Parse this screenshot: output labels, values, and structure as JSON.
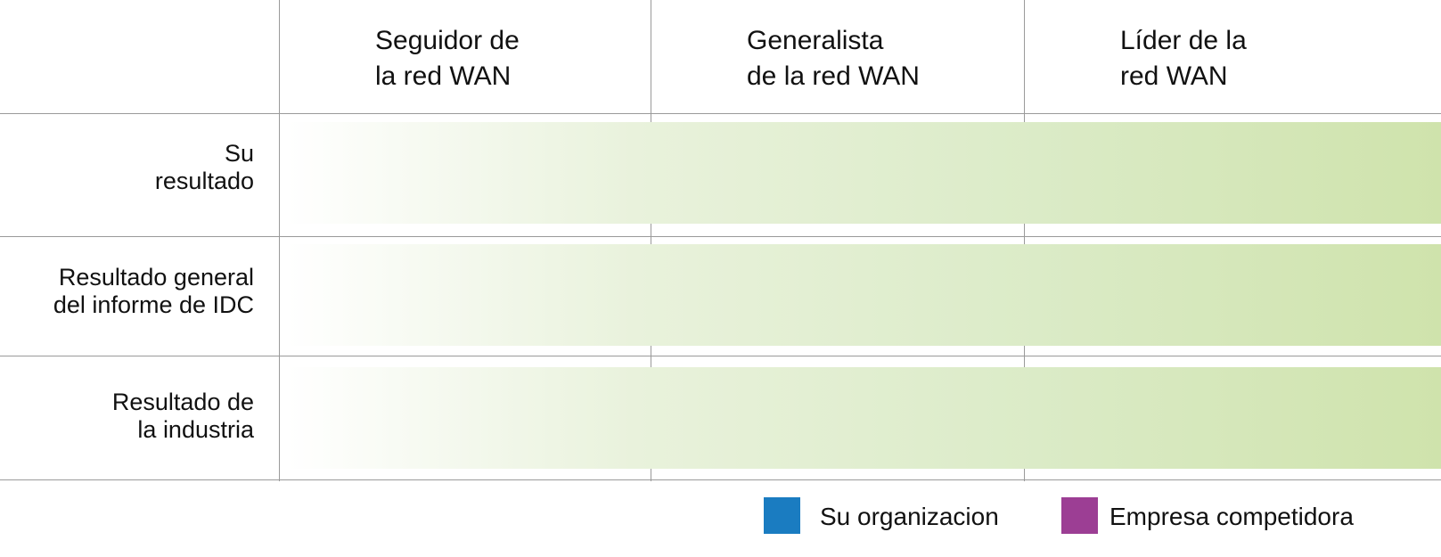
{
  "chart_data": {
    "type": "table",
    "title": "",
    "columns": [
      "Seguidor de\nla red WAN",
      "Generalista\nde la red WAN",
      "Líder de la\nred WAN"
    ],
    "rows": [
      "Su\nresultado",
      "Resultado general\ndel informe de IDC",
      "Resultado de\nla industria"
    ],
    "series": [
      {
        "name": "Su organizacion",
        "color": "#1a7cc1",
        "values": []
      },
      {
        "name": "Empresa competidora",
        "color": "#9c3e94",
        "values": []
      }
    ],
    "band_gradient": [
      "#ffffff",
      "#cfe3ac"
    ],
    "legend": "bottom-right",
    "grid": true
  }
}
